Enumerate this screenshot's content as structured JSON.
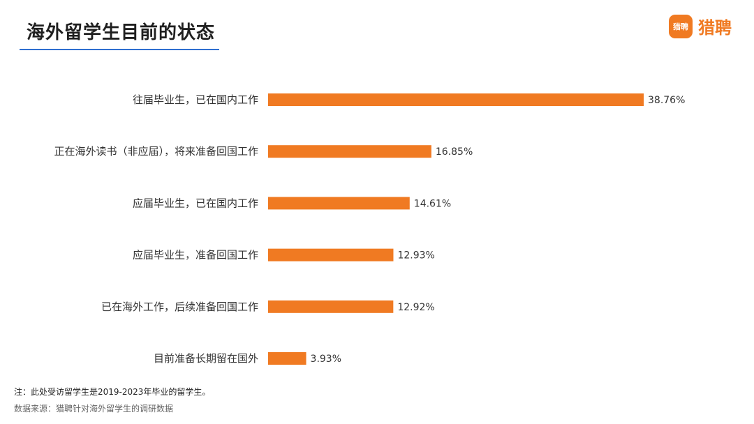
{
  "header": {
    "title": "海外留学生目前的状态",
    "logo_badge": "猎聘",
    "logo_text": "猎聘"
  },
  "colors": {
    "bar": "#f07a22",
    "accent_line": "#2f6fd0"
  },
  "chart_data": {
    "type": "bar",
    "orientation": "horizontal",
    "categories": [
      "往届毕业生，已在国内工作",
      "正在海外读书（非应届），将来准备回国工作",
      "应届毕业生，已在国内工作",
      "应届毕业生，准备回国工作",
      "已在海外工作，后续准备回国工作",
      "目前准备长期留在国外"
    ],
    "values": [
      38.76,
      16.85,
      14.61,
      12.93,
      12.92,
      3.93
    ],
    "value_labels": [
      "38.76%",
      "16.85%",
      "14.61%",
      "12.93%",
      "12.92%",
      "3.93%"
    ],
    "title": "海外留学生目前的状态",
    "xlabel": "",
    "ylabel": "",
    "xlim": [
      0,
      38.76
    ],
    "grid": false,
    "legend": "none"
  },
  "footer": {
    "note": "注：此处受访留学生是2019-2023年毕业的留学生。",
    "source": "数据来源：猎聘针对海外留学生的调研数据"
  }
}
